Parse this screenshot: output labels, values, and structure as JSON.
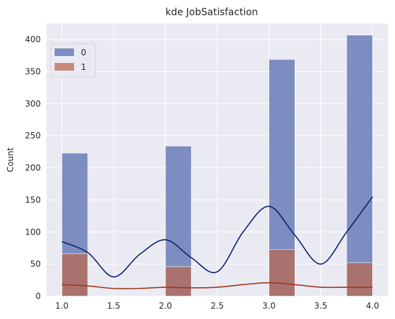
{
  "chart_data": {
    "type": "bar",
    "title": "kde JobSatisfaction",
    "xlabel": "",
    "ylabel": "Count",
    "xlim": [
      0.85,
      4.15
    ],
    "ylim": [
      0,
      425
    ],
    "x_ticks": [
      "1.0",
      "1.5",
      "2.0",
      "2.5",
      "3.0",
      "3.5",
      "4.0"
    ],
    "y_ticks": [
      "0",
      "50",
      "100",
      "150",
      "200",
      "250",
      "300",
      "350",
      "400"
    ],
    "grid": true,
    "legend_position": "top-left",
    "bin_edges": [
      1.0,
      1.25,
      1.5,
      1.75,
      2.0,
      2.25,
      2.5,
      2.75,
      3.0,
      3.25,
      3.5,
      3.75,
      4.0
    ],
    "series": [
      {
        "name": "0",
        "color": "#5a6eb0",
        "values": [
          223,
          0,
          0,
          0,
          234,
          0,
          0,
          0,
          369,
          0,
          0,
          407
        ],
        "kde": {
          "color": "#0a1f6e",
          "x": [
            1.0,
            1.25,
            1.5,
            1.75,
            2.0,
            2.25,
            2.5,
            2.75,
            3.0,
            3.25,
            3.5,
            3.75,
            4.0
          ],
          "y": [
            85,
            68,
            30,
            65,
            88,
            60,
            38,
            100,
            140,
            95,
            50,
            100,
            155
          ]
        }
      },
      {
        "name": "1",
        "color": "#b86a52",
        "values": [
          66,
          0,
          0,
          0,
          46,
          0,
          0,
          0,
          73,
          0,
          0,
          52
        ],
        "kde": {
          "color": "#a0341a",
          "x": [
            1.0,
            1.25,
            1.5,
            1.75,
            2.0,
            2.25,
            2.5,
            2.75,
            3.0,
            3.25,
            3.5,
            3.75,
            4.0
          ],
          "y": [
            18,
            16,
            12,
            12,
            14,
            13,
            14,
            18,
            21,
            18,
            14,
            14,
            14
          ]
        }
      }
    ]
  }
}
